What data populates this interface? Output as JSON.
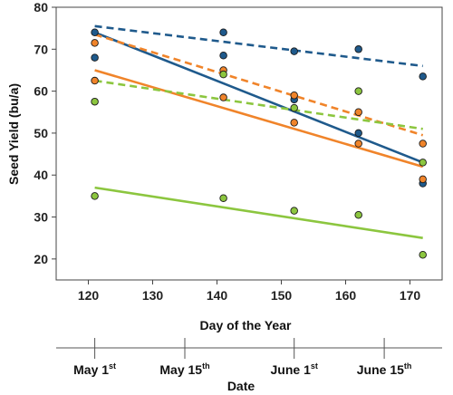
{
  "chart_data": {
    "type": "scatter",
    "xlabel": "Day of the Year",
    "ylabel": "Seed Yield (bu/a)",
    "xlim": [
      115,
      175
    ],
    "ylim": [
      15,
      80
    ],
    "x_ticks": [
      120,
      130,
      140,
      150,
      160,
      170
    ],
    "y_ticks": [
      20,
      30,
      40,
      50,
      60,
      70,
      80
    ],
    "grid": false,
    "series": [
      {
        "color": "#1f5a8c",
        "points": [
          [
            121,
            74
          ],
          [
            121,
            68
          ],
          [
            141,
            74
          ],
          [
            141,
            68.5
          ],
          [
            152,
            69.5
          ],
          [
            152,
            58
          ],
          [
            162,
            70
          ],
          [
            162,
            50
          ],
          [
            172,
            63.5
          ],
          [
            172,
            38
          ]
        ]
      },
      {
        "color": "#f0842a",
        "points": [
          [
            121,
            71.5
          ],
          [
            121,
            62.5
          ],
          [
            141,
            65
          ],
          [
            141,
            58.5
          ],
          [
            152,
            59
          ],
          [
            152,
            52.5
          ],
          [
            162,
            55
          ],
          [
            162,
            47.5
          ],
          [
            172,
            47.5
          ],
          [
            172,
            39
          ]
        ]
      },
      {
        "color": "#8cc63f",
        "points": [
          [
            121,
            57.5
          ],
          [
            121,
            35
          ],
          [
            141,
            64
          ],
          [
            141,
            34.5
          ],
          [
            152,
            56
          ],
          [
            152,
            31.5
          ],
          [
            162,
            60
          ],
          [
            162,
            30.5
          ],
          [
            172,
            43
          ],
          [
            172,
            21
          ]
        ]
      }
    ],
    "trendlines": [
      {
        "color": "#1f5a8c",
        "style": "dashed",
        "x": [
          121,
          172
        ],
        "y": [
          75.5,
          66
        ]
      },
      {
        "color": "#1f5a8c",
        "style": "solid",
        "x": [
          121,
          172
        ],
        "y": [
          74,
          43
        ]
      },
      {
        "color": "#f0842a",
        "style": "dashed",
        "x": [
          121,
          172
        ],
        "y": [
          73.5,
          49.5
        ]
      },
      {
        "color": "#f0842a",
        "style": "solid",
        "x": [
          121,
          172
        ],
        "y": [
          65,
          42
        ]
      },
      {
        "color": "#8cc63f",
        "style": "dashed",
        "x": [
          121,
          172
        ],
        "y": [
          62.5,
          51
        ]
      },
      {
        "color": "#8cc63f",
        "style": "solid",
        "x": [
          121,
          172
        ],
        "y": [
          37,
          25
        ]
      }
    ],
    "date_axis": {
      "title": "Date",
      "labels": [
        {
          "text": "May 1",
          "sup": "st",
          "day": 121
        },
        {
          "text": "May 15",
          "sup": "th",
          "day": 135
        },
        {
          "text": "June 1",
          "sup": "st",
          "day": 152
        },
        {
          "text": "June 15",
          "sup": "th",
          "day": 166
        }
      ]
    }
  }
}
